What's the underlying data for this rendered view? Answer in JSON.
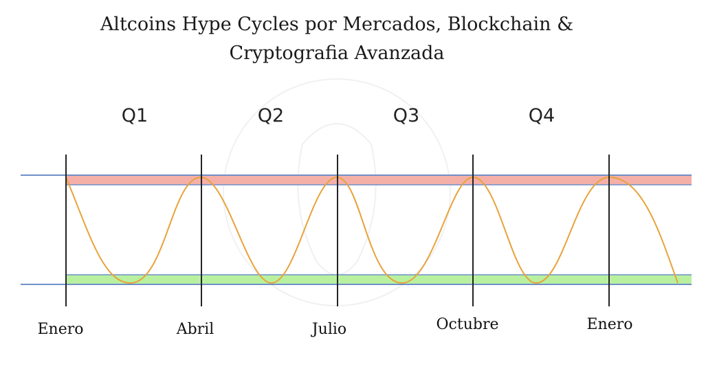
{
  "title": {
    "line1": "Altcoins Hype Cycles por Mercados, Blockchain &",
    "line2": "Cryptografia Avanzada"
  },
  "quarters": [
    "Q1",
    "Q2",
    "Q3",
    "Q4"
  ],
  "months": [
    "Enero",
    "Abril",
    "Julio",
    "Octubre",
    "Enero"
  ],
  "colors": {
    "top_band": "#f4b0a8",
    "bottom_band": "#b8f0a0",
    "band_line": "#6f8fc8",
    "curve": "#e8a23a",
    "divider": "#222222"
  }
}
